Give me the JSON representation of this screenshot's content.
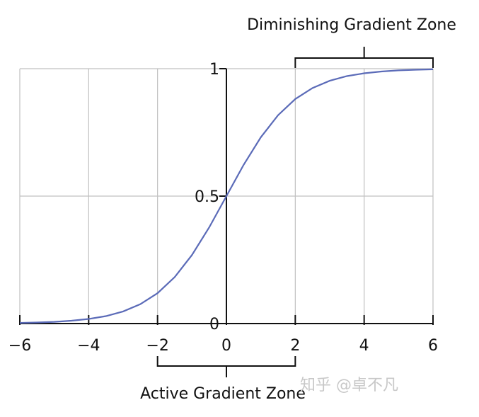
{
  "chart_data": {
    "type": "line",
    "title": "",
    "xlabel": "",
    "ylabel": "",
    "xlim": [
      -6,
      6
    ],
    "ylim": [
      0,
      1
    ],
    "grid": true,
    "x_ticks": [
      -6,
      -4,
      -2,
      0,
      2,
      4,
      6
    ],
    "x_tick_labels": [
      "−6",
      "−4",
      "−2",
      "0",
      "2",
      "4",
      "6"
    ],
    "y_ticks": [
      0,
      0.5,
      1
    ],
    "y_tick_labels": [
      "0",
      "0.5",
      "1"
    ],
    "series": [
      {
        "color": "#5b6bb8",
        "x": [
          -6,
          -5.5,
          -5,
          -4.5,
          -4,
          -3.5,
          -3,
          -2.5,
          -2,
          -1.5,
          -1,
          -0.5,
          0,
          0.5,
          1,
          1.5,
          2,
          2.5,
          3,
          3.5,
          4,
          4.5,
          5,
          5.5,
          6
        ],
        "y": [
          0.0025,
          0.0041,
          0.0067,
          0.011,
          0.018,
          0.0293,
          0.0474,
          0.0759,
          0.1192,
          0.1824,
          0.2689,
          0.3775,
          0.5,
          0.6225,
          0.7311,
          0.8176,
          0.8808,
          0.9241,
          0.9526,
          0.9707,
          0.982,
          0.989,
          0.9933,
          0.9959,
          0.9975
        ]
      }
    ],
    "annotations": [
      {
        "text": "Diminishing Gradient Zone",
        "x_range": [
          2,
          6
        ],
        "position": "top"
      },
      {
        "text": "Active Gradient Zone",
        "x_range": [
          -2,
          2
        ],
        "position": "bottom"
      }
    ]
  },
  "watermark": {
    "text": "知乎 @卓不凡"
  },
  "colors": {
    "curve": "#5b6bb8",
    "grid": "#c0c0c0",
    "axis": "#111111"
  }
}
